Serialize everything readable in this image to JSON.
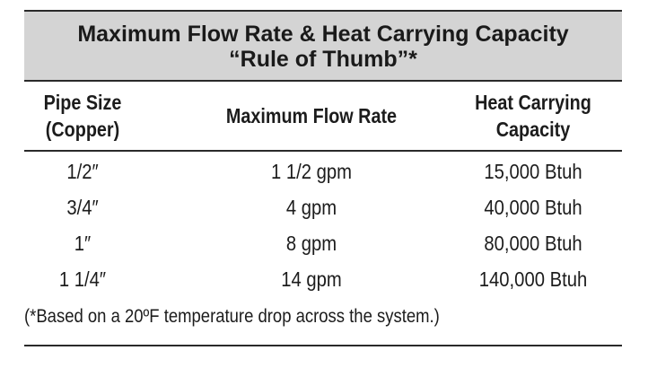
{
  "table": {
    "title_line1": "Maximum Flow Rate & Heat Carrying Capacity",
    "title_line2": "“Rule of Thumb”*",
    "headers": {
      "pipe_size": [
        "Pipe Size",
        "(Copper)"
      ],
      "flow_rate": "Maximum Flow Rate",
      "heat_capacity": [
        "Heat Carrying",
        "Capacity"
      ]
    },
    "rows": [
      {
        "pipe_size": "1/2″",
        "flow_rate": "1 1/2 gpm",
        "heat_capacity": "15,000 Btuh"
      },
      {
        "pipe_size": "3/4″",
        "flow_rate": "4 gpm",
        "heat_capacity": "40,000 Btuh"
      },
      {
        "pipe_size": "1″",
        "flow_rate": "8 gpm",
        "heat_capacity": "80,000 Btuh"
      },
      {
        "pipe_size": "1 1/4″",
        "flow_rate": "14 gpm",
        "heat_capacity": "140,000 Btuh"
      }
    ],
    "footnote": "(*Based on a 20ºF temperature drop across the system.)"
  },
  "colors": {
    "title_band": "#d4d4d4",
    "rule": "#2a2a2a",
    "text": "#1c1c1c"
  }
}
